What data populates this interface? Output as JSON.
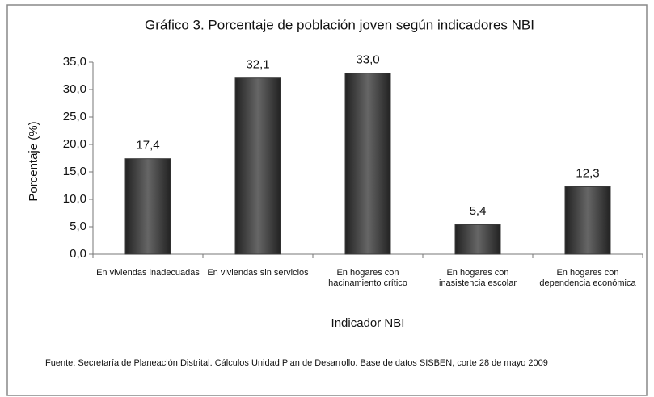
{
  "chart_data": {
    "type": "bar",
    "title": "Gráfico 3. Porcentaje de población joven según indicadores NBI",
    "categories": [
      "En viviendas inadecuadas",
      "En viviendas sin servicios",
      "En hogares con hacinamiento crítico",
      "En hogares con inasistencia escolar",
      "En hogares con dependencia económica"
    ],
    "values": [
      17.4,
      32.1,
      33.0,
      5.4,
      12.3
    ],
    "value_labels": [
      "17,4",
      "32,1",
      "33,0",
      "5,4",
      "12,3"
    ],
    "color": "#3a3a3a",
    "ylim": [
      0,
      35
    ],
    "yticks": [
      {
        "value": 0,
        "label": "0,0"
      },
      {
        "value": 5,
        "label": "5,0"
      },
      {
        "value": 10,
        "label": "10,0"
      },
      {
        "value": 15,
        "label": "15,0"
      },
      {
        "value": 20,
        "label": "20,0"
      },
      {
        "value": 25,
        "label": "25,0"
      },
      {
        "value": 30,
        "label": "30,0"
      },
      {
        "value": 35,
        "label": "35,0"
      }
    ],
    "ylabel": "Porcentaje (%)",
    "xlabel": "Indicador NBI",
    "source": "Fuente: Secretaría de Planeación Distrital. Cálculos Unidad Plan de Desarrollo. Base de datos SISBEN, corte 28 de mayo 2009",
    "grid": false
  }
}
